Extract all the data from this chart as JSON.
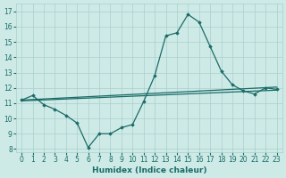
{
  "xlabel": "Humidex (Indice chaleur)",
  "line1_x": [
    0,
    1,
    2,
    3,
    4,
    5,
    6,
    7,
    8,
    9,
    10,
    11,
    12,
    13,
    14,
    15,
    16,
    17,
    18,
    19,
    20,
    21,
    22,
    23
  ],
  "line1_y": [
    11.2,
    11.5,
    10.9,
    10.6,
    10.2,
    9.7,
    8.1,
    9.0,
    9.0,
    9.4,
    9.6,
    11.1,
    12.8,
    15.4,
    15.6,
    16.8,
    16.3,
    14.7,
    13.1,
    12.2,
    11.8,
    11.6,
    12.0,
    11.9
  ],
  "line2_x": [
    0,
    23
  ],
  "line2_y": [
    11.2,
    12.05
  ],
  "line3_x": [
    0,
    23
  ],
  "line3_y": [
    11.15,
    11.85
  ],
  "bg_color": "#ceeae7",
  "grid_color": "#aacfcc",
  "line_color": "#1a6b66",
  "xlim": [
    -0.5,
    23.5
  ],
  "ylim": [
    7.8,
    17.5
  ],
  "yticks": [
    8,
    9,
    10,
    11,
    12,
    13,
    14,
    15,
    16,
    17
  ],
  "xticks": [
    0,
    1,
    2,
    3,
    4,
    5,
    6,
    7,
    8,
    9,
    10,
    11,
    12,
    13,
    14,
    15,
    16,
    17,
    18,
    19,
    20,
    21,
    22,
    23
  ]
}
